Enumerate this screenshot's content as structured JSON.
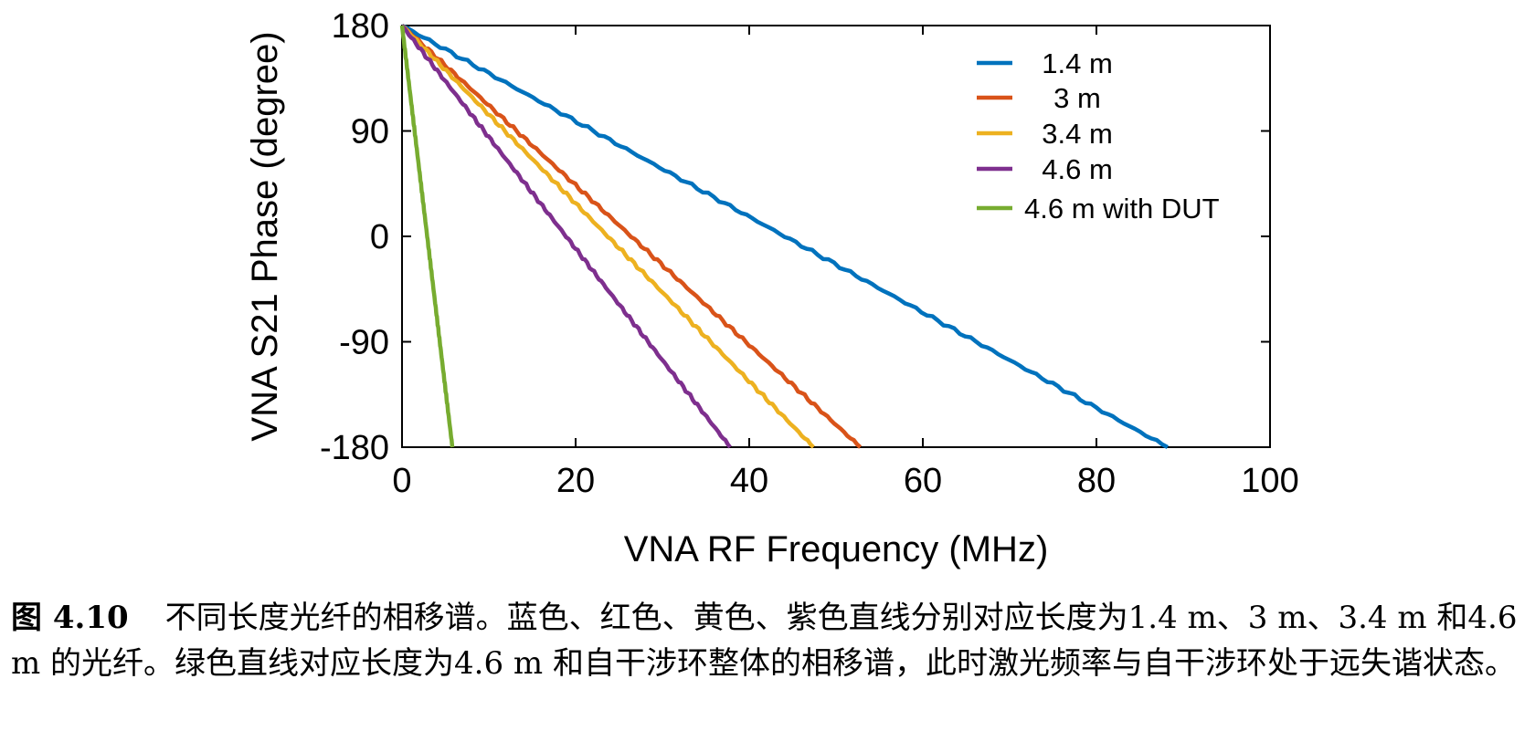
{
  "chart_data": {
    "type": "line",
    "xlabel": "VNA RF Frequency (MHz)",
    "ylabel": "VNA S21 Phase (degree)",
    "xlim": [
      0,
      100
    ],
    "ylim": [
      -180,
      180
    ],
    "xticks": [
      0,
      20,
      40,
      60,
      80,
      100
    ],
    "yticks": [
      180,
      90,
      0,
      -90,
      -180
    ],
    "xtick_labels": [
      "0",
      "20",
      "40",
      "60",
      "80",
      "100"
    ],
    "ytick_labels": [
      "180",
      "90",
      "0",
      "-90",
      "-180"
    ],
    "grid": false,
    "legend_position": "top-right",
    "series": [
      {
        "name": "1.4 m",
        "color": "#0072BD",
        "x": [
          0,
          88.2
        ],
        "y": [
          180,
          -180
        ]
      },
      {
        "name": "3 m",
        "color": "#D95319",
        "x": [
          0,
          52.8
        ],
        "y": [
          180,
          -180
        ]
      },
      {
        "name": "3.4 m",
        "color": "#EDB120",
        "x": [
          0,
          47.4
        ],
        "y": [
          180,
          -180
        ]
      },
      {
        "name": "4.6 m",
        "color": "#7E2F8E",
        "x": [
          0,
          37.8
        ],
        "y": [
          180,
          -180
        ]
      },
      {
        "name": "4.6 m with DUT",
        "color": "#77AC30",
        "x": [
          0,
          5.8
        ],
        "y": [
          180,
          -180
        ]
      }
    ]
  },
  "caption": {
    "figure_number": "图 4.10",
    "text": "不同长度光纤的相移谱。蓝色、红色、黄色、紫色直线分别对应长度为1.4 m、3 m、3.4 m 和4.6 m 的光纤。绿色直线对应长度为4.6 m 和自干涉环整体的相移谱，此时激光频率与自干涉环处于远失谐状态。"
  }
}
